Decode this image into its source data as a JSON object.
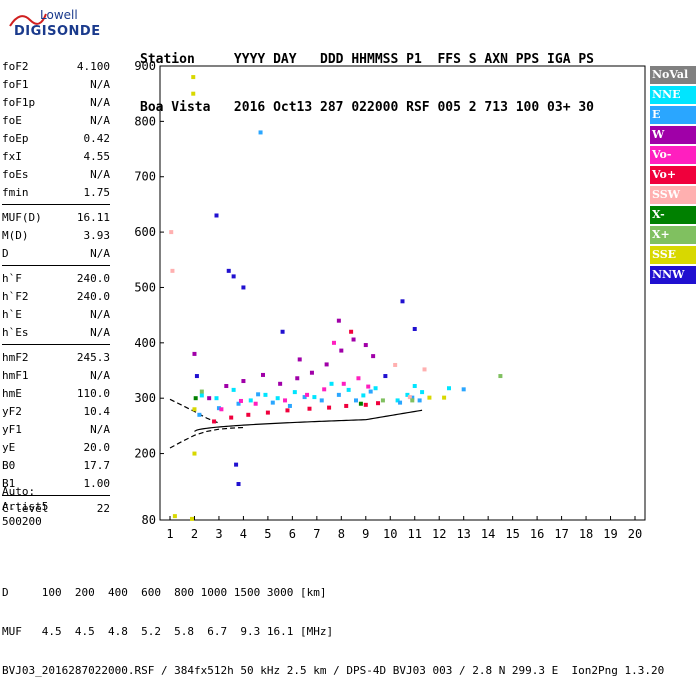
{
  "logo": {
    "line1": "Lowell",
    "line2": "DIGISONDE"
  },
  "header": {
    "row1": [
      "Station",
      "YYYY",
      "DAY",
      "DDD",
      "HHMMSS",
      "P1",
      "FFS",
      "S",
      "AXN",
      "PPS",
      "IGA",
      "PS"
    ],
    "row2": [
      "Boa Vista",
      "2016",
      "Oct13",
      "287",
      "022000",
      "RSF",
      "005",
      "2",
      "713",
      "100",
      "03+",
      "30"
    ]
  },
  "params": {
    "group1": [
      {
        "k": "foF2",
        "v": "4.100"
      },
      {
        "k": "foF1",
        "v": "N/A"
      },
      {
        "k": "foF1p",
        "v": "N/A"
      },
      {
        "k": "foE",
        "v": "N/A"
      },
      {
        "k": "foEp",
        "v": "0.42"
      },
      {
        "k": "fxI",
        "v": "4.55"
      },
      {
        "k": "foEs",
        "v": "N/A"
      },
      {
        "k": "fmin",
        "v": "1.75"
      }
    ],
    "group2": [
      {
        "k": "MUF(D)",
        "v": "16.11"
      },
      {
        "k": "M(D)",
        "v": "3.93"
      },
      {
        "k": "D",
        "v": "N/A"
      }
    ],
    "group3": [
      {
        "k": "h`F",
        "v": "240.0"
      },
      {
        "k": "h`F2",
        "v": "240.0"
      },
      {
        "k": "h`E",
        "v": "N/A"
      },
      {
        "k": "h`Es",
        "v": "N/A"
      }
    ],
    "group4": [
      {
        "k": "hmF2",
        "v": "245.3"
      },
      {
        "k": "hmF1",
        "v": "N/A"
      },
      {
        "k": "hmE",
        "v": "110.0"
      },
      {
        "k": "yF2",
        "v": "10.4"
      },
      {
        "k": "yF1",
        "v": "N/A"
      },
      {
        "k": "yE",
        "v": "20.0"
      },
      {
        "k": "B0",
        "v": "17.7"
      },
      {
        "k": "B1",
        "v": "1.00"
      }
    ],
    "group5": [
      {
        "k": "C-level",
        "v": "22"
      }
    ]
  },
  "auto": {
    "line1": "Auto:",
    "line2": "Artist5",
    "line3": "500200"
  },
  "legend": [
    {
      "label": "NoVal",
      "color": "#808080"
    },
    {
      "label": "NNE",
      "color": "#00e5ff"
    },
    {
      "label": "E",
      "color": "#2aa6ff"
    },
    {
      "label": "W",
      "color": "#a000a8"
    },
    {
      "label": "Vo-",
      "color": "#ff1fbf"
    },
    {
      "label": "Vo+",
      "color": "#f0003c"
    },
    {
      "label": "SSW",
      "color": "#ffb0b0"
    },
    {
      "label": "X-",
      "color": "#008000"
    },
    {
      "label": "X+",
      "color": "#80c060"
    },
    {
      "label": "SSE",
      "color": "#d8d800"
    },
    {
      "label": "NNW",
      "color": "#2010d0"
    }
  ],
  "footer": {
    "row1": "D     100  200  400  600  800 1000 1500 3000 [km]",
    "row2": "MUF   4.5  4.5  4.8  5.2  5.8  6.7  9.3 16.1 [MHz]",
    "row3": "BVJ03_2016287022000.RSF / 384fx512h 50 kHz 2.5 km / DPS-4D BVJ03 003 / 2.8 N 299.3 E  Ion2Png 1.3.20"
  },
  "chart_data": {
    "type": "scatter",
    "title": "",
    "xlabel": "",
    "ylabel": "",
    "xlim": [
      1,
      20
    ],
    "ylim": [
      80,
      900
    ],
    "xticks": [
      1,
      2,
      3,
      4,
      5,
      6,
      7,
      8,
      9,
      10,
      11,
      12,
      13,
      14,
      15,
      16,
      17,
      18,
      19,
      20
    ],
    "yticks": [
      80,
      200,
      300,
      400,
      500,
      600,
      700,
      800,
      900
    ],
    "grid": false,
    "legend_position": "right",
    "series": [
      {
        "name": "NNE",
        "points": [
          [
            2.3,
            305
          ],
          [
            2.9,
            300
          ],
          [
            3.6,
            315
          ],
          [
            4.3,
            296
          ],
          [
            4.9,
            306
          ],
          [
            5.4,
            300
          ],
          [
            6.1,
            311
          ],
          [
            6.9,
            302
          ],
          [
            7.6,
            326
          ],
          [
            8.3,
            315
          ],
          [
            8.9,
            305
          ],
          [
            9.4,
            318
          ],
          [
            10.3,
            296
          ],
          [
            10.7,
            306
          ],
          [
            11.0,
            322
          ],
          [
            11.3,
            311
          ],
          [
            12.4,
            318
          ]
        ]
      },
      {
        "name": "E",
        "points": [
          [
            2.2,
            270
          ],
          [
            3.0,
            282
          ],
          [
            3.8,
            290
          ],
          [
            4.6,
            307
          ],
          [
            5.2,
            292
          ],
          [
            5.9,
            286
          ],
          [
            6.5,
            302
          ],
          [
            7.2,
            296
          ],
          [
            7.9,
            306
          ],
          [
            8.6,
            296
          ],
          [
            9.2,
            312
          ],
          [
            10.4,
            292
          ],
          [
            10.9,
            301
          ],
          [
            11.2,
            296
          ],
          [
            13.0,
            316
          ],
          [
            4.7,
            780
          ]
        ]
      },
      {
        "name": "W",
        "points": [
          [
            2.6,
            300
          ],
          [
            3.3,
            322
          ],
          [
            4.0,
            331
          ],
          [
            4.8,
            342
          ],
          [
            5.5,
            326
          ],
          [
            6.2,
            336
          ],
          [
            6.8,
            346
          ],
          [
            7.4,
            361
          ],
          [
            8.0,
            386
          ],
          [
            8.5,
            406
          ],
          [
            9.0,
            396
          ],
          [
            9.3,
            376
          ],
          [
            2.0,
            380
          ],
          [
            6.3,
            370
          ],
          [
            7.9,
            440
          ]
        ]
      },
      {
        "name": "Vo-",
        "points": [
          [
            3.1,
            280
          ],
          [
            3.9,
            295
          ],
          [
            4.5,
            290
          ],
          [
            5.7,
            296
          ],
          [
            6.6,
            306
          ],
          [
            7.3,
            316
          ],
          [
            8.1,
            326
          ],
          [
            8.7,
            336
          ],
          [
            9.1,
            321
          ],
          [
            7.7,
            400
          ]
        ]
      },
      {
        "name": "Vo+",
        "points": [
          [
            2.8,
            258
          ],
          [
            3.5,
            265
          ],
          [
            4.2,
            270
          ],
          [
            5.0,
            274
          ],
          [
            5.8,
            278
          ],
          [
            6.7,
            281
          ],
          [
            7.5,
            283
          ],
          [
            8.2,
            286
          ],
          [
            9.0,
            288
          ],
          [
            9.5,
            291
          ],
          [
            8.4,
            420
          ]
        ]
      },
      {
        "name": "SSW",
        "points": [
          [
            1.05,
            600
          ],
          [
            1.1,
            530
          ],
          [
            10.2,
            360
          ],
          [
            10.8,
            302
          ],
          [
            11.4,
            352
          ]
        ]
      },
      {
        "name": "X-",
        "points": [
          [
            2.05,
            300
          ],
          [
            8.8,
            290
          ]
        ]
      },
      {
        "name": "X+",
        "points": [
          [
            2.3,
            312
          ],
          [
            9.7,
            296
          ],
          [
            10.9,
            296
          ],
          [
            14.5,
            340
          ]
        ]
      },
      {
        "name": "SSE",
        "points": [
          [
            1.95,
            880
          ],
          [
            1.95,
            850
          ],
          [
            2.0,
            280
          ],
          [
            2.0,
            200
          ],
          [
            1.2,
            87
          ],
          [
            1.9,
            82
          ],
          [
            11.6,
            301
          ],
          [
            12.2,
            301
          ]
        ]
      },
      {
        "name": "NNW",
        "points": [
          [
            2.1,
            340
          ],
          [
            3.4,
            530
          ],
          [
            3.6,
            520
          ],
          [
            2.9,
            630
          ],
          [
            4.0,
            500
          ],
          [
            3.7,
            180
          ],
          [
            3.8,
            145
          ],
          [
            5.6,
            420
          ],
          [
            10.5,
            475
          ],
          [
            11.0,
            425
          ],
          [
            9.8,
            340
          ]
        ]
      }
    ]
  }
}
